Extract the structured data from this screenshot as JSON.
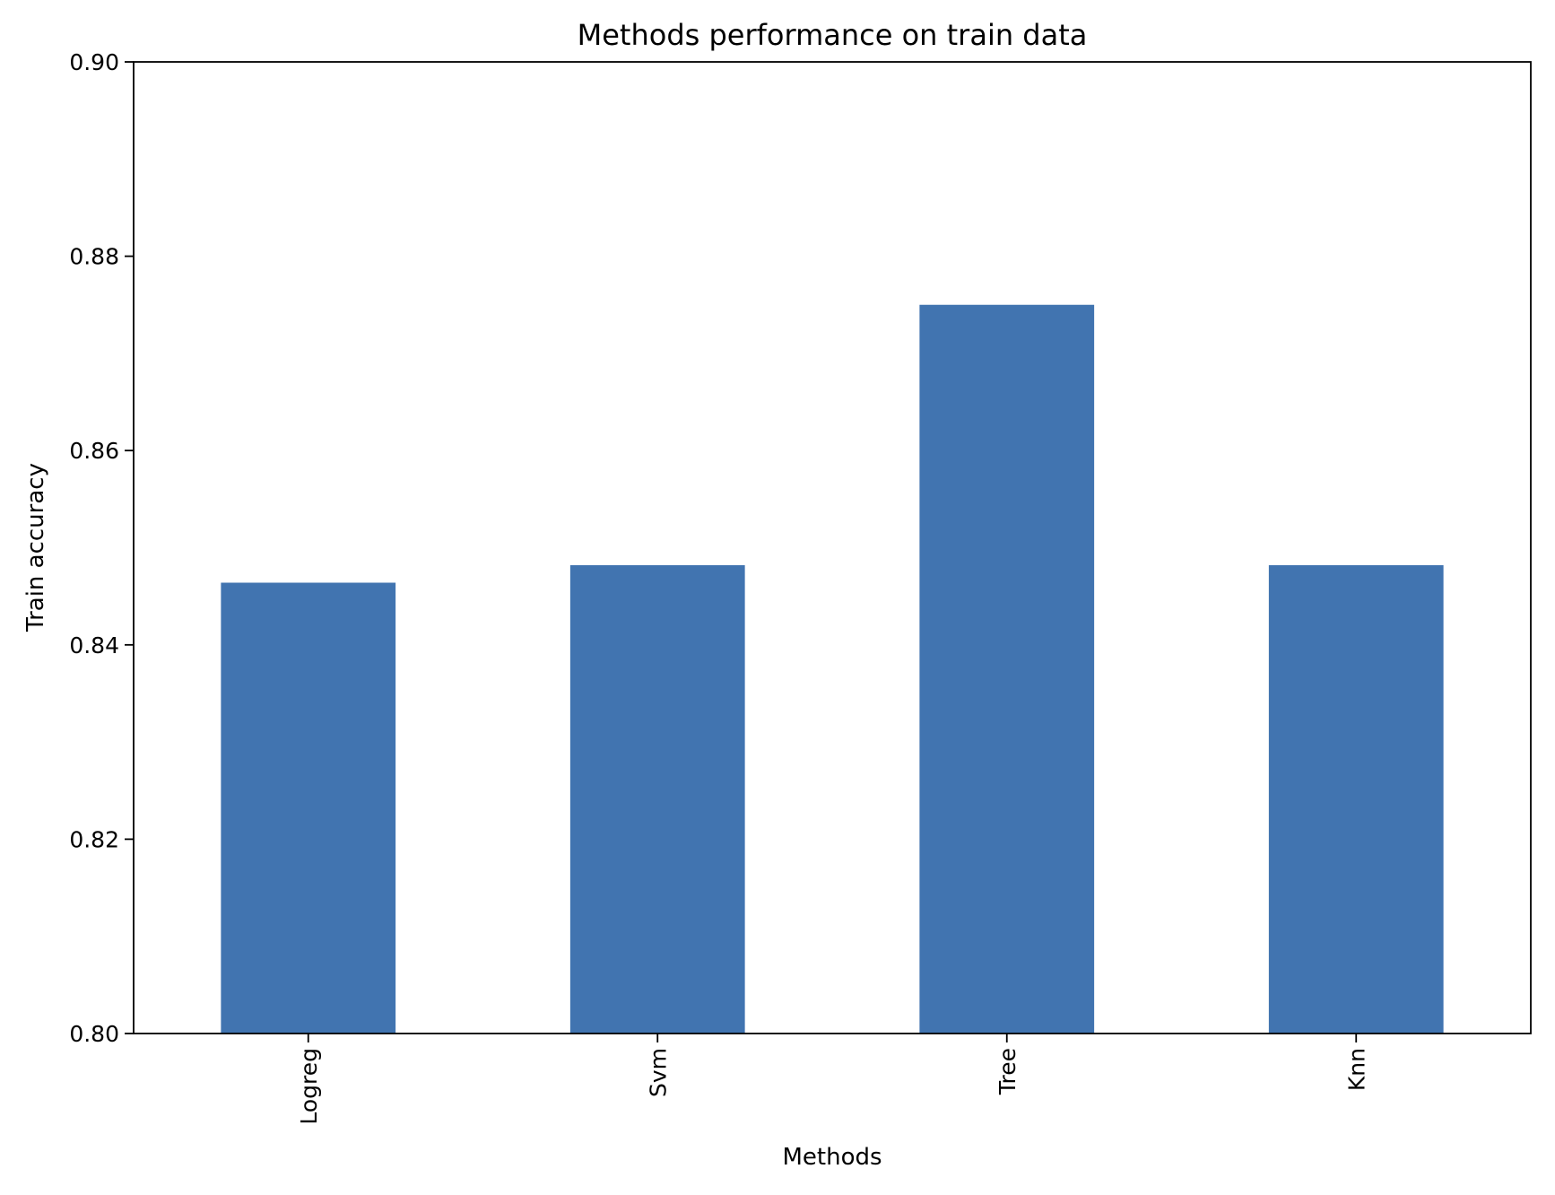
{
  "chart_data": {
    "type": "bar",
    "title": "Methods performance on train data",
    "xlabel": "Methods",
    "ylabel": "Train accuracy",
    "categories": [
      "Logreg",
      "Svm",
      "Tree",
      "Knn"
    ],
    "values": [
      0.8464,
      0.8482,
      0.875,
      0.8482
    ],
    "ylim": [
      0.8,
      0.9
    ],
    "yticks": [
      "0.80",
      "0.82",
      "0.84",
      "0.86",
      "0.88",
      "0.90"
    ],
    "grid": false,
    "legend": "none",
    "bar_color": "#4174b0"
  }
}
